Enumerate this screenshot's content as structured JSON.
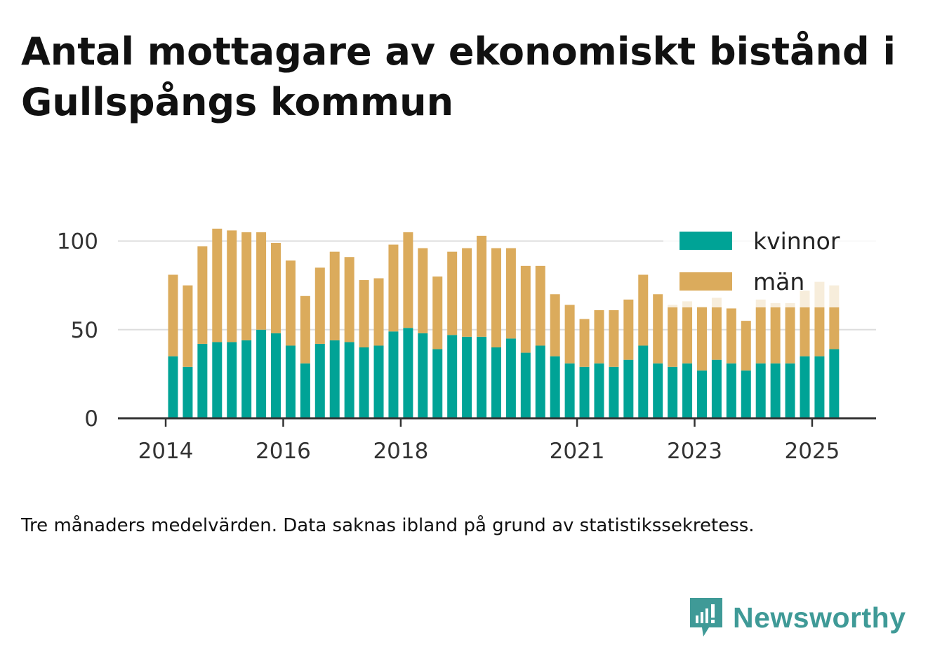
{
  "title": "Antal mottagare av ekonomiskt bistånd i Gullspångs kommun",
  "note": "Tre månaders medelvärden. Data saknas ibland på grund av statistikssekretess.",
  "brand": {
    "name": "Newsworthy",
    "icon": "newsworthy-logo-icon",
    "color": "#3f9a97"
  },
  "chart_data": {
    "type": "bar",
    "stacked": true,
    "ylim": [
      0,
      110
    ],
    "yticks": [
      0,
      50,
      100
    ],
    "grid": true,
    "legend_position": "top-right",
    "xticks": [
      {
        "label": "2014",
        "index": -1
      },
      {
        "label": "2016",
        "index": 7
      },
      {
        "label": "2018",
        "index": 15
      },
      {
        "label": "2021",
        "index": 27
      },
      {
        "label": "2023",
        "index": 35
      },
      {
        "label": "2025",
        "index": 43
      }
    ],
    "categories": [
      "2014-05",
      "2014-08",
      "2014-11",
      "2015-02",
      "2015-05",
      "2015-08",
      "2015-11",
      "2016-02",
      "2016-05",
      "2016-08",
      "2016-11",
      "2017-02",
      "2017-05",
      "2017-08",
      "2017-11",
      "2018-02",
      "2018-05",
      "2018-08",
      "2018-11",
      "2019-02",
      "2019-05",
      "2019-08",
      "2019-11",
      "2020-02",
      "2020-05",
      "2020-08",
      "2020-11",
      "2021-02",
      "2021-05",
      "2021-08",
      "2021-11",
      "2022-02",
      "2022-05",
      "2022-08",
      "2022-11",
      "2023-02",
      "2023-05",
      "2023-08",
      "2023-11",
      "2024-02",
      "2024-05",
      "2024-08",
      "2024-11",
      "2025-02",
      "2025-05",
      "2025-08"
    ],
    "series": [
      {
        "name": "kvinnor",
        "color": "#00a396",
        "values": [
          35,
          29,
          42,
          43,
          43,
          44,
          50,
          48,
          41,
          31,
          42,
          44,
          43,
          40,
          41,
          49,
          51,
          48,
          39,
          47,
          46,
          46,
          40,
          45,
          37,
          41,
          35,
          31,
          29,
          31,
          29,
          33,
          41,
          31,
          29,
          31,
          27,
          33,
          31,
          27,
          31,
          31,
          31,
          35,
          35,
          39
        ]
      },
      {
        "name": "män",
        "color": "#dbab5c",
        "color_faded": "#f6ebd8",
        "values": [
          46,
          46,
          55,
          64,
          63,
          61,
          55,
          51,
          48,
          38,
          43,
          50,
          48,
          38,
          38,
          49,
          54,
          48,
          41,
          47,
          50,
          57,
          56,
          51,
          49,
          45,
          35,
          33,
          27,
          30,
          32,
          34,
          40,
          39,
          35,
          35,
          36,
          35,
          31,
          28,
          36,
          34,
          34,
          37,
          42,
          36
        ]
      }
    ]
  }
}
